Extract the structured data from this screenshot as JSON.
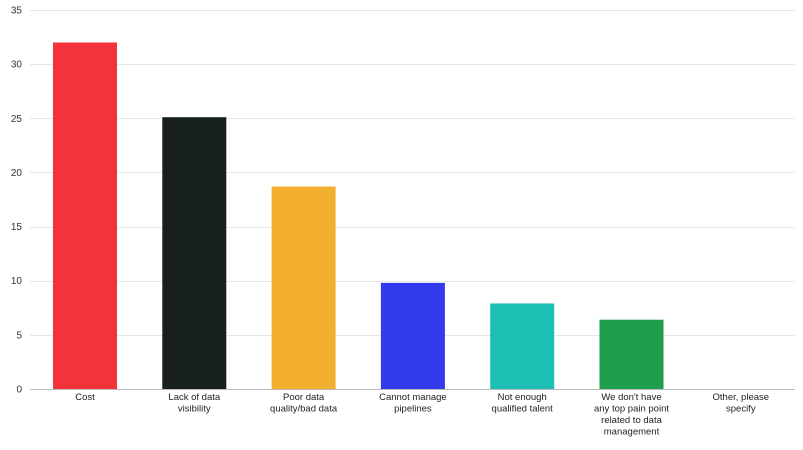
{
  "chart_data": {
    "type": "bar",
    "title": "",
    "xlabel": "",
    "ylabel": "",
    "ylim": [
      0,
      35
    ],
    "yticks": [
      0,
      5,
      10,
      15,
      20,
      25,
      30,
      35
    ],
    "grid": true,
    "categories": [
      [
        "Cost"
      ],
      [
        "Lack of data",
        "visibility"
      ],
      [
        "Poor data",
        "quality/bad data"
      ],
      [
        "Cannot manage",
        "pipelines"
      ],
      [
        "Not enough",
        "qualified talent"
      ],
      [
        "We don't have",
        "any top pain point",
        "related to data",
        "management"
      ],
      [
        "Other, please",
        "specify"
      ]
    ],
    "values": [
      32,
      25.1,
      18.7,
      9.8,
      7.9,
      6.4,
      0
    ],
    "colors": [
      "#f2333a",
      "#17201e",
      "#f2ae2e",
      "#3339ec",
      "#1dbfb5",
      "#1f9e4b",
      "#cccccc"
    ]
  }
}
